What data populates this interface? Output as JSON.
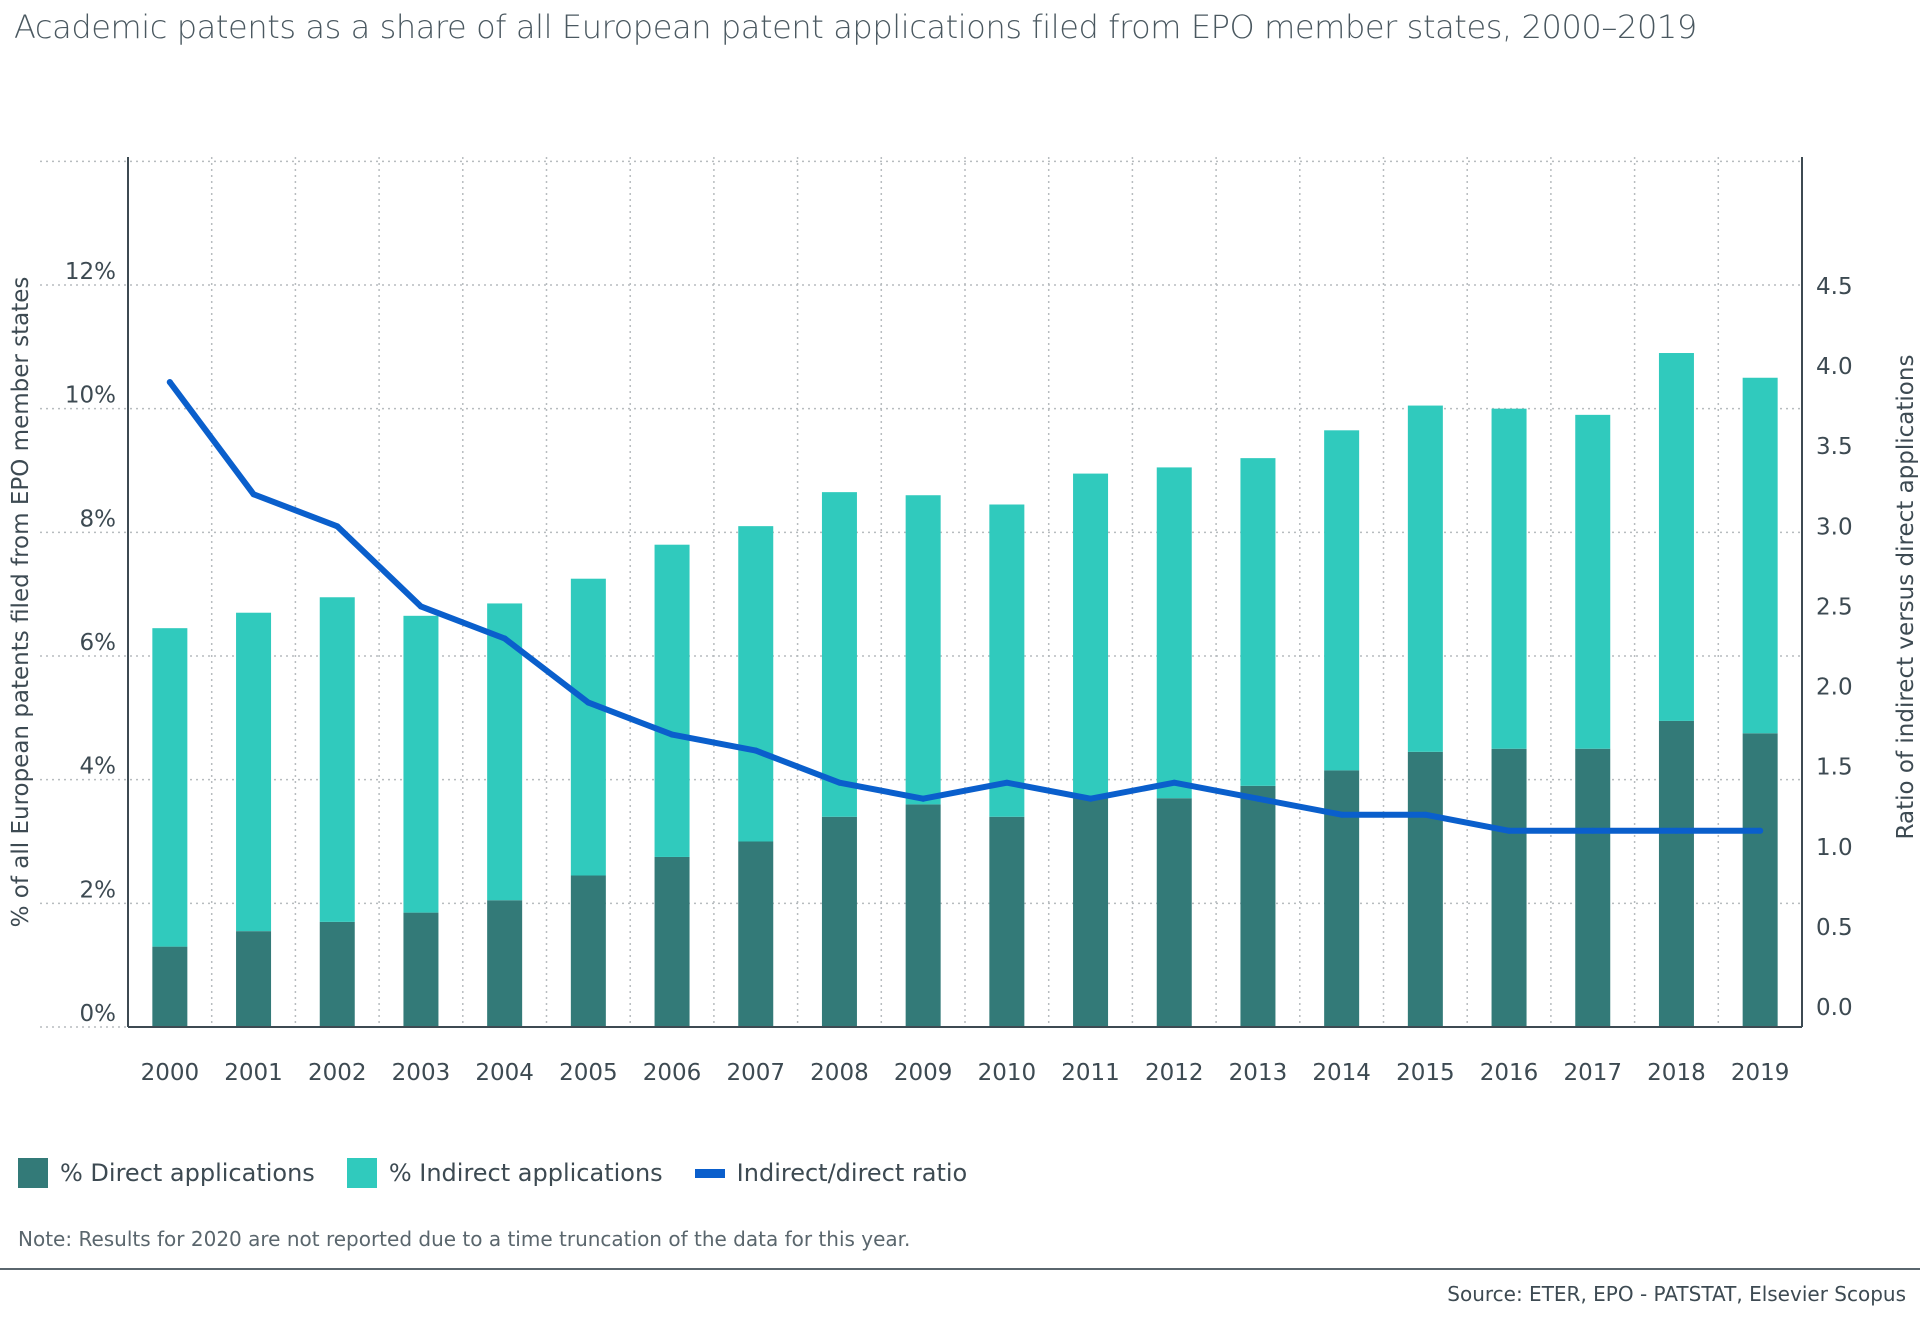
{
  "chart_data": {
    "type": "bar",
    "stacked": true,
    "title": "Academic patents as a share of all European patent applications filed from EPO member states, 2000–2019",
    "categories": [
      "2000",
      "2001",
      "2002",
      "2003",
      "2004",
      "2005",
      "2006",
      "2007",
      "2008",
      "2009",
      "2010",
      "2011",
      "2012",
      "2013",
      "2014",
      "2015",
      "2016",
      "2017",
      "2018",
      "2019"
    ],
    "series": [
      {
        "name": "% Direct applications",
        "axis": "left",
        "color": "#337a78",
        "values": [
          1.3,
          1.55,
          1.7,
          1.85,
          2.05,
          2.45,
          2.75,
          3.0,
          3.4,
          3.6,
          3.4,
          3.7,
          3.7,
          3.9,
          4.15,
          4.45,
          4.5,
          4.5,
          4.95,
          4.75
        ]
      },
      {
        "name": "% Indirect applications",
        "axis": "left",
        "color": "#30cabd",
        "values": [
          5.15,
          5.15,
          5.25,
          4.8,
          4.8,
          4.8,
          5.05,
          5.1,
          5.25,
          5.0,
          5.05,
          5.25,
          5.35,
          5.3,
          5.5,
          5.6,
          5.5,
          5.4,
          5.95,
          5.75
        ]
      },
      {
        "name": "Indirect/direct ratio",
        "axis": "right",
        "type": "line",
        "color": "#0a5fcc",
        "values": [
          3.9,
          3.2,
          3.0,
          2.5,
          2.3,
          1.9,
          1.7,
          1.6,
          1.4,
          1.3,
          1.4,
          1.3,
          1.4,
          1.3,
          1.2,
          1.2,
          1.1,
          1.1,
          1.1,
          1.1
        ]
      }
    ],
    "left_axis": {
      "label": "% of all European patents filed from EPO member states",
      "ylim": [
        0,
        14
      ],
      "ticks": [
        0,
        2,
        4,
        6,
        8,
        10,
        12
      ],
      "tick_labels": [
        "0%",
        "2%",
        "4%",
        "6%",
        "8%",
        "10%",
        "12%"
      ]
    },
    "right_axis": {
      "label": "Ratio of indirect versus direct applications",
      "ylim": [
        0,
        5.25
      ],
      "ticks": [
        0,
        0.5,
        1,
        1.5,
        2,
        2.5,
        3,
        3.5,
        4,
        4.5
      ],
      "tick_labels": [
        "0.0",
        "0.5",
        "1.0",
        "1.5",
        "2.0",
        "2.5",
        "3.0",
        "3.5",
        "4.0",
        "4.5"
      ]
    },
    "grid": true,
    "legend_position": "bottom-left"
  },
  "legend": {
    "direct_label": "% Direct applications",
    "indirect_label": "% Indirect applications",
    "ratio_label": "Indirect/direct ratio"
  },
  "note": "Note: Results for 2020 are not reported due to a time truncation of the data for this year.",
  "source": "Source: ETER, EPO - PATSTAT, Elsevier Scopus"
}
